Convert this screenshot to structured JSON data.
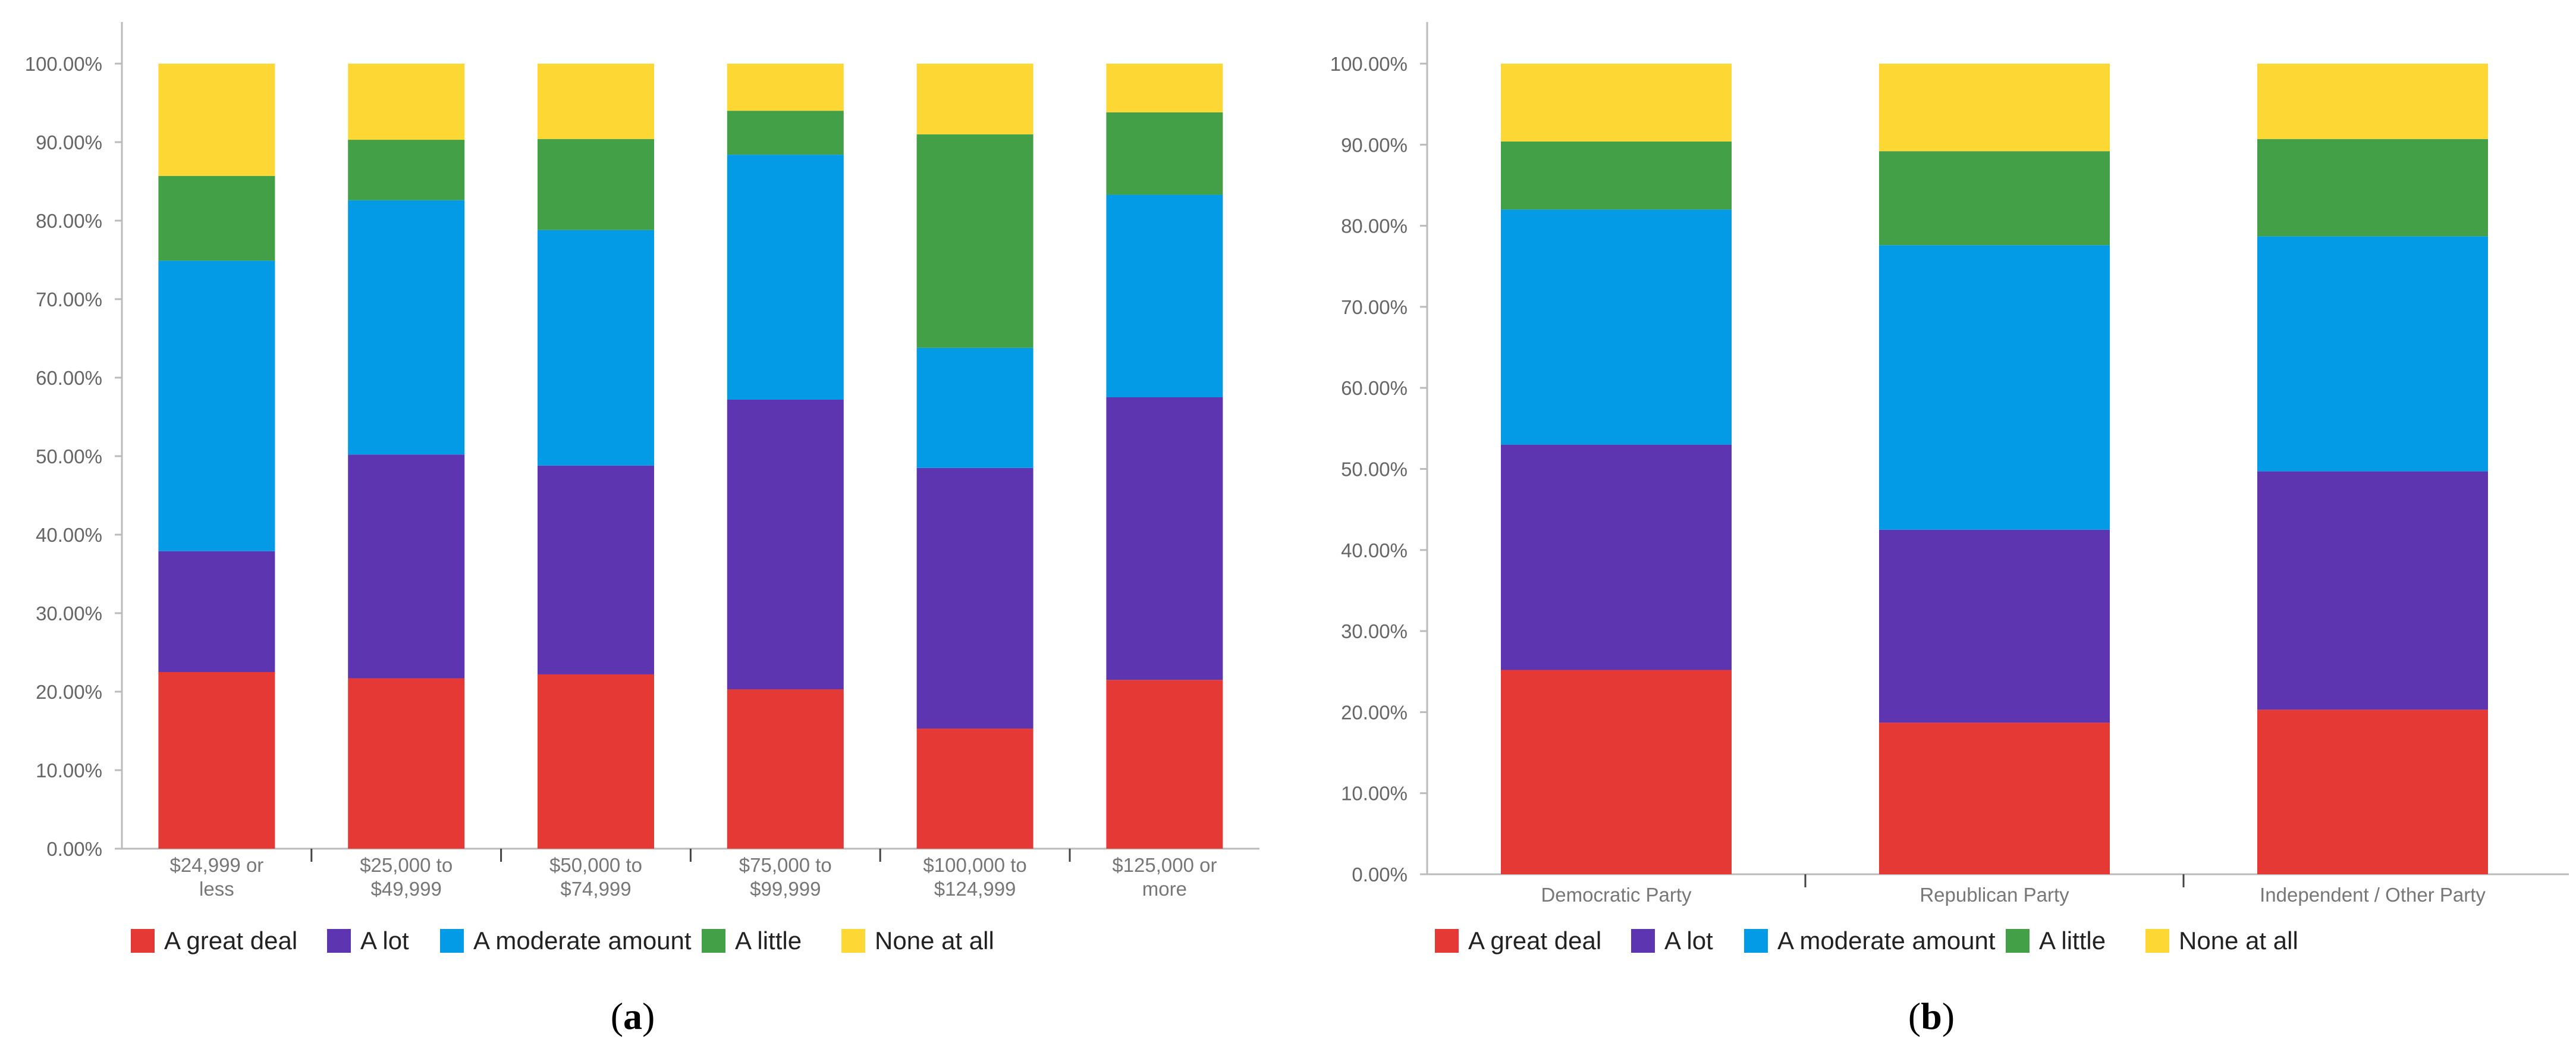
{
  "colors": {
    "A great deal": "#e53935",
    "A lot": "#5e35b1",
    "A moderate amount": "#039be5",
    "A little": "#43a047",
    "None at all": "#fdd835"
  },
  "chart_data": [
    {
      "type": "bar",
      "stacked": true,
      "panel_label": [
        "(",
        "a",
        ")"
      ],
      "ylim": [
        0,
        100
      ],
      "y_ticks": [
        "0.00%",
        "10.00%",
        "20.00%",
        "30.00%",
        "40.00%",
        "50.00%",
        "60.00%",
        "70.00%",
        "80.00%",
        "90.00%",
        "100.00%"
      ],
      "categories": [
        [
          "$24,999 or",
          "less"
        ],
        [
          "$25,000 to",
          "$49,999"
        ],
        [
          "$50,000 to",
          "$74,999"
        ],
        [
          "$75,000 to",
          "$99,999"
        ],
        [
          "$100,000 to",
          "$124,999"
        ],
        [
          "$125,000 or",
          "more"
        ]
      ],
      "series": [
        {
          "name": "A great deal",
          "values": [
            22.5,
            21.7,
            22.2,
            20.3,
            15.3,
            21.5
          ]
        },
        {
          "name": "A lot",
          "values": [
            15.4,
            28.5,
            26.6,
            36.9,
            33.2,
            36.0
          ]
        },
        {
          "name": "A moderate amount",
          "values": [
            37.0,
            32.4,
            30.0,
            31.2,
            15.3,
            25.8
          ]
        },
        {
          "name": "A little",
          "values": [
            10.8,
            7.7,
            11.6,
            5.6,
            27.2,
            10.5
          ]
        },
        {
          "name": "None at all",
          "values": [
            14.3,
            9.7,
            9.6,
            6.0,
            9.0,
            6.2
          ]
        }
      ],
      "legend": [
        "A great deal",
        "A lot",
        "A moderate amount",
        "A little",
        "None at all"
      ]
    },
    {
      "type": "bar",
      "stacked": true,
      "panel_label": [
        "(",
        "b",
        ")"
      ],
      "ylim": [
        0,
        100
      ],
      "y_ticks": [
        "0.00%",
        "10.00%",
        "20.00%",
        "30.00%",
        "40.00%",
        "50.00%",
        "60.00%",
        "70.00%",
        "80.00%",
        "90.00%",
        "100.00%"
      ],
      "categories": [
        [
          "Democratic Party"
        ],
        [
          "Republican Party"
        ],
        [
          "Independent / Other Party"
        ]
      ],
      "series": [
        {
          "name": "A great deal",
          "values": [
            25.2,
            18.7,
            20.3
          ]
        },
        {
          "name": "A lot",
          "values": [
            27.8,
            23.8,
            29.4
          ]
        },
        {
          "name": "A moderate amount",
          "values": [
            29.0,
            35.1,
            29.0
          ]
        },
        {
          "name": "A little",
          "values": [
            8.4,
            11.6,
            12.0
          ]
        },
        {
          "name": "None at all",
          "values": [
            9.6,
            10.8,
            9.3
          ]
        }
      ],
      "legend": [
        "A great deal",
        "A lot",
        "A moderate amount",
        "A little",
        "None at all"
      ]
    }
  ]
}
